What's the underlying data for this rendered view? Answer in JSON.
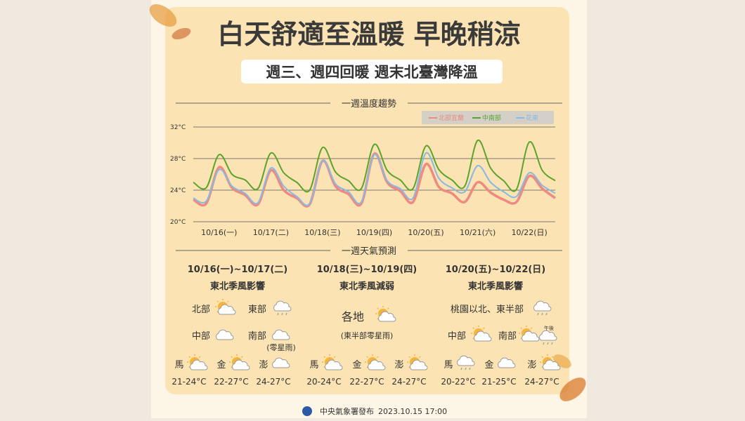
{
  "header": {
    "title": "白天舒適至溫暖 早晚稍涼",
    "subtitle": "週三、週四回暖  週末北臺灣降溫"
  },
  "chart_data": {
    "type": "line",
    "title": "一週溫度趨勢",
    "categories": [
      null,
      null,
      "10/16(一)",
      null,
      null,
      null,
      "10/17(二)",
      null,
      null,
      null,
      "10/18(三)",
      null,
      null,
      null,
      "10/19(四)",
      null,
      null,
      null,
      "10/20(五)",
      null,
      null,
      null,
      "10/21(六)",
      null,
      null,
      null,
      "10/22(日)",
      null,
      null
    ],
    "series": [
      {
        "name": "北部宜蘭",
        "color": "#ee8a80",
        "values": [
          22.8,
          22.3,
          26.9,
          24.3,
          23.4,
          22.2,
          26.5,
          24.0,
          23.0,
          22.2,
          27.7,
          24.5,
          23.5,
          22.3,
          28.6,
          25.0,
          23.9,
          22.5,
          27.3,
          24.4,
          23.6,
          22.5,
          25.0,
          23.7,
          22.8,
          22.5,
          25.8,
          24.2,
          23.0
        ]
      },
      {
        "name": "中南部",
        "color": "#5aa42c",
        "values": [
          25.0,
          24.3,
          28.5,
          26.0,
          25.3,
          24.2,
          28.7,
          26.2,
          25.0,
          24.0,
          29.4,
          26.3,
          25.2,
          24.2,
          29.8,
          26.5,
          25.3,
          24.2,
          29.6,
          26.6,
          25.3,
          24.5,
          30.3,
          26.8,
          25.2,
          24.1,
          30.1,
          26.5,
          25.2
        ]
      },
      {
        "name": "花東",
        "color": "#86b9e6",
        "values": [
          23.0,
          22.6,
          26.6,
          24.5,
          23.6,
          22.4,
          26.8,
          24.5,
          23.2,
          22.3,
          27.7,
          24.8,
          23.8,
          22.5,
          28.5,
          25.2,
          24.2,
          23.0,
          28.7,
          25.5,
          24.3,
          23.8,
          27.1,
          25.0,
          23.8,
          23.2,
          26.2,
          24.6,
          23.6
        ]
      }
    ],
    "ylim": [
      20,
      32
    ],
    "yticks": [
      {
        "value": 20,
        "label": "20°C"
      },
      {
        "value": 24,
        "label": "24°C"
      },
      {
        "value": 28,
        "label": "28°C"
      },
      {
        "value": 32,
        "label": "32°C"
      }
    ],
    "grid": true,
    "legend": "top-right"
  },
  "forecast": {
    "title": "一週天氣預測",
    "columns": [
      {
        "dates": "10/16(一)~10/17(二)",
        "summary": "東北季風影響",
        "regions": [
          "北部",
          "東部",
          "中部",
          "南部"
        ],
        "note": "(零星雨)",
        "islands": [
          {
            "name": "馬",
            "temp": "21-24°C"
          },
          {
            "name": "金",
            "temp": "22-27°C"
          },
          {
            "name": "澎",
            "temp": "24-27°C"
          }
        ]
      },
      {
        "dates": "10/18(三)~10/19(四)",
        "summary": "東北季風減弱",
        "regions": [
          "各地"
        ],
        "note": "(東半部零星雨)",
        "islands": [
          {
            "name": "馬",
            "temp": "20-24°C"
          },
          {
            "name": "金",
            "temp": "22-27°C"
          },
          {
            "name": "澎",
            "temp": "24-27°C"
          }
        ]
      },
      {
        "dates": "10/20(五)~10/22(日)",
        "summary": "東北季風影響",
        "regions": [
          "桃園以北、東半部",
          "中部",
          "南部"
        ],
        "note": "午後",
        "islands": [
          {
            "name": "馬",
            "temp": "20-22°C"
          },
          {
            "name": "金",
            "temp": "21-25°C"
          },
          {
            "name": "澎",
            "temp": "24-27°C"
          }
        ]
      }
    ]
  },
  "footer": {
    "source": "中央氣象署發布",
    "time": "2023.10.15  17:00"
  }
}
